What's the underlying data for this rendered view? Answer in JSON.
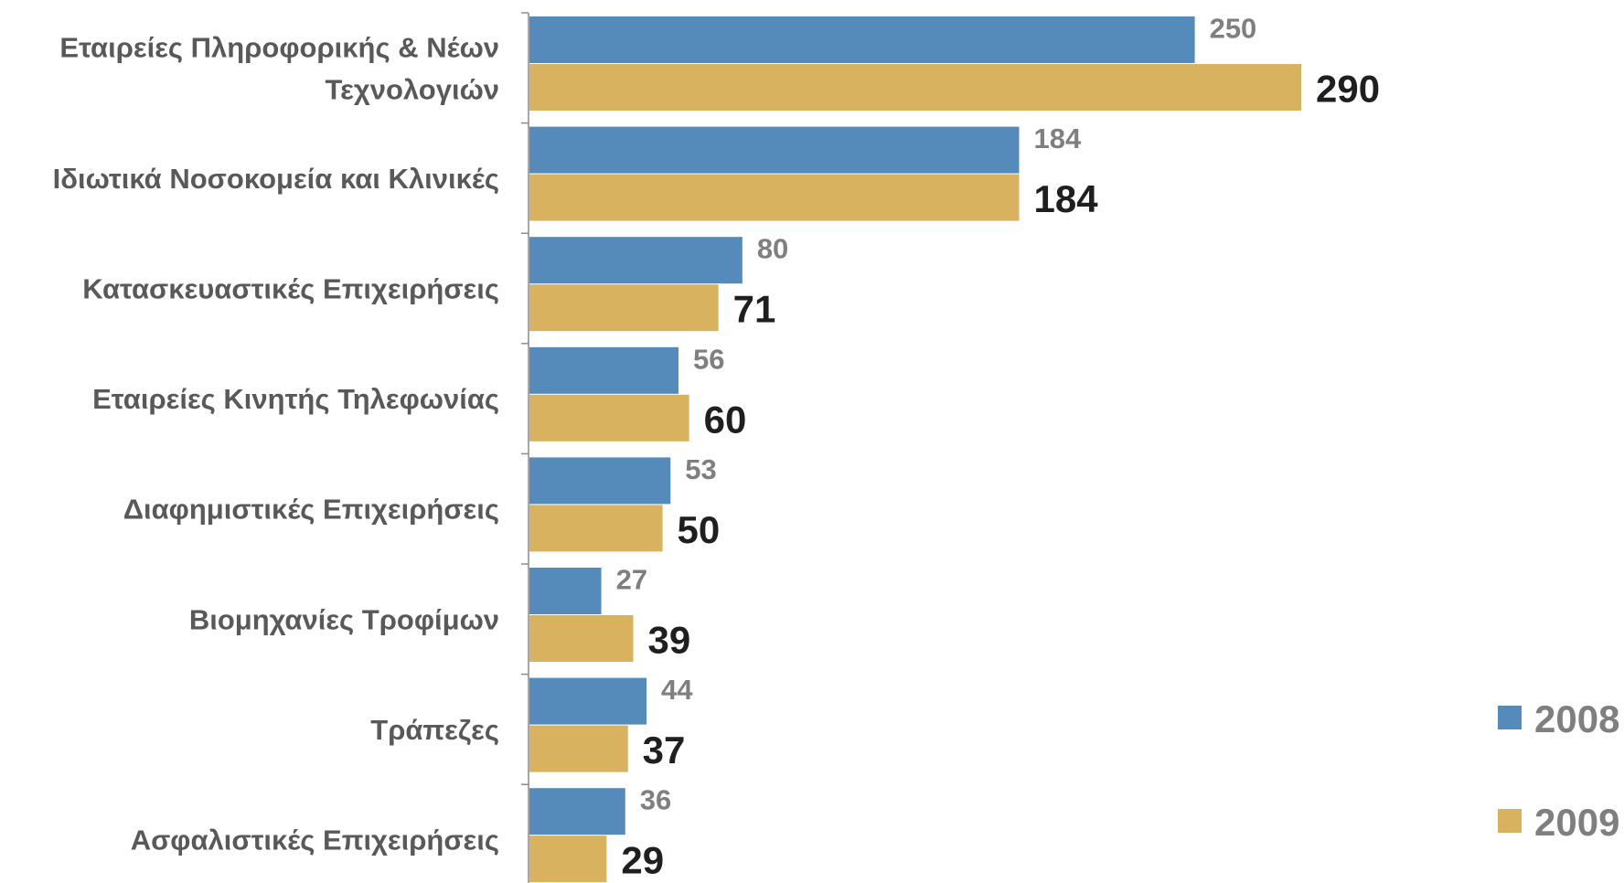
{
  "chart_data": {
    "type": "bar",
    "orientation": "horizontal",
    "categories": [
      [
        "Εταιρείες Πληροφορικής & Νέων",
        "Τεχνολογιών"
      ],
      [
        "Ιδιωτικά Νοσοκομεία και Κλινικές"
      ],
      [
        "Κατασκευαστικές Επιχειρήσεις"
      ],
      [
        "Εταιρείες Κινητής Τηλεφωνίας"
      ],
      [
        "Διαφημιστικές Επιχειρήσεις"
      ],
      [
        "Βιομηχανίες Τροφίμων"
      ],
      [
        "Τράπεζες"
      ],
      [
        "Ασφαλιστικές Επιχειρήσεις"
      ]
    ],
    "series": [
      {
        "name": "2008",
        "color": "#558bbb",
        "values": [
          250,
          184,
          80,
          56,
          53,
          27,
          44,
          36
        ]
      },
      {
        "name": "2009",
        "color": "#d8b25e",
        "values": [
          290,
          184,
          71,
          60,
          50,
          39,
          37,
          29
        ]
      }
    ],
    "xlim": [
      0,
      290
    ],
    "grid": false,
    "legend_position": "bottom-right",
    "data_labels": true
  }
}
